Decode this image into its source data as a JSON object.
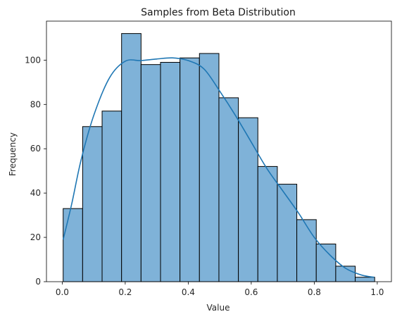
{
  "chart_data": {
    "type": "bar",
    "title": "Samples from Beta Distribution",
    "xlabel": "Value",
    "ylabel": "Frequency",
    "xlim": [
      -0.05,
      1.045
    ],
    "ylim": [
      0,
      117.6
    ],
    "xticks": [
      "0.0",
      "0.2",
      "0.4",
      "0.6",
      "0.8",
      "1.0"
    ],
    "yticks": [
      "0",
      "20",
      "40",
      "60",
      "80",
      "100"
    ],
    "bins": [
      {
        "x0": 0.003,
        "x1": 0.0648,
        "count": 33
      },
      {
        "x0": 0.0648,
        "x1": 0.1266,
        "count": 70
      },
      {
        "x0": 0.1266,
        "x1": 0.1884,
        "count": 77
      },
      {
        "x0": 0.1884,
        "x1": 0.2502,
        "count": 112
      },
      {
        "x0": 0.2502,
        "x1": 0.312,
        "count": 98
      },
      {
        "x0": 0.312,
        "x1": 0.3738,
        "count": 99
      },
      {
        "x0": 0.3738,
        "x1": 0.4356,
        "count": 101
      },
      {
        "x0": 0.4356,
        "x1": 0.4974,
        "count": 103
      },
      {
        "x0": 0.4974,
        "x1": 0.5592,
        "count": 83
      },
      {
        "x0": 0.5592,
        "x1": 0.621,
        "count": 74
      },
      {
        "x0": 0.621,
        "x1": 0.6828,
        "count": 52
      },
      {
        "x0": 0.6828,
        "x1": 0.7446,
        "count": 44
      },
      {
        "x0": 0.7446,
        "x1": 0.8064,
        "count": 28
      },
      {
        "x0": 0.8064,
        "x1": 0.8682,
        "count": 17
      },
      {
        "x0": 0.8682,
        "x1": 0.93,
        "count": 7
      },
      {
        "x0": 0.93,
        "x1": 0.9918,
        "count": 2
      }
    ],
    "kde": {
      "x": [
        0.003,
        0.03,
        0.06,
        0.1,
        0.15,
        0.2,
        0.25,
        0.3,
        0.35,
        0.4,
        0.45,
        0.5,
        0.55,
        0.6,
        0.65,
        0.7,
        0.75,
        0.8,
        0.85,
        0.9,
        0.95,
        0.99
      ],
      "y": [
        19,
        35,
        55,
        75,
        92,
        99.5,
        99.8,
        100.5,
        101,
        99.8,
        96,
        86,
        75,
        63,
        51,
        41,
        31,
        20,
        12,
        6,
        3,
        2
      ]
    },
    "grid": false,
    "legend": "none",
    "colors": {
      "bar_fill": "#7fb2d8",
      "bar_edge": "#000000",
      "kde_line": "#1f77b4",
      "axis": "#000000"
    }
  }
}
